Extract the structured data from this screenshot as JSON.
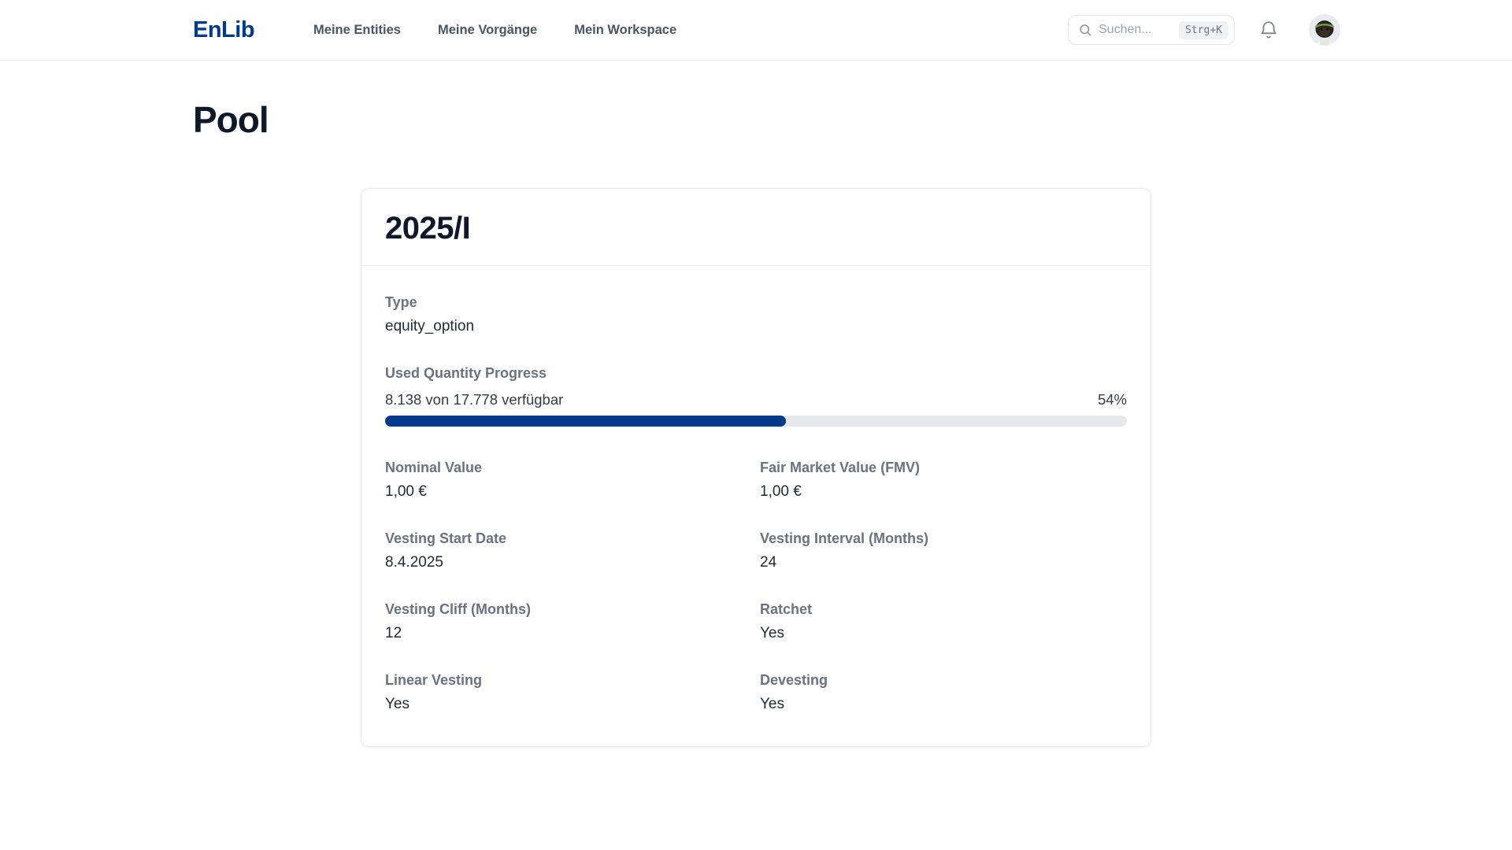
{
  "header": {
    "logo": "EnLib",
    "nav": [
      {
        "label": "Meine Entities"
      },
      {
        "label": "Meine Vorgänge"
      },
      {
        "label": "Mein Workspace"
      }
    ],
    "search": {
      "placeholder": "Suchen...",
      "shortcut": "Strg+K",
      "icon": "search-icon"
    },
    "bell_icon": "bell-icon",
    "avatar": "user-avatar"
  },
  "page": {
    "title": "Pool"
  },
  "card": {
    "title": "2025/I",
    "type": {
      "label": "Type",
      "value": "equity_option"
    },
    "progress": {
      "label": "Used Quantity Progress",
      "detail": "8.138 von 17.778 verfügbar",
      "percent_label": "54%",
      "percent": 54
    },
    "pairs": [
      {
        "label": "Nominal Value",
        "value": "1,00 €"
      },
      {
        "label": "Fair Market Value (FMV)",
        "value": "1,00 €"
      },
      {
        "label": "Vesting Start Date",
        "value": "8.4.2025"
      },
      {
        "label": "Vesting Interval (Months)",
        "value": "24"
      },
      {
        "label": "Vesting Cliff (Months)",
        "value": "12"
      },
      {
        "label": "Ratchet",
        "value": "Yes"
      },
      {
        "label": "Linear Vesting",
        "value": "Yes"
      },
      {
        "label": "Devesting",
        "value": "Yes"
      }
    ]
  },
  "colors": {
    "brand_navy": "#003a8c",
    "heading_text": "#0f172a",
    "label_gray": "#6b7280",
    "value_text": "#1f2937",
    "border": "#e9ebee",
    "progress_track": "#e6e8eb",
    "shortcut_badge_bg": "#f0f1f4"
  }
}
